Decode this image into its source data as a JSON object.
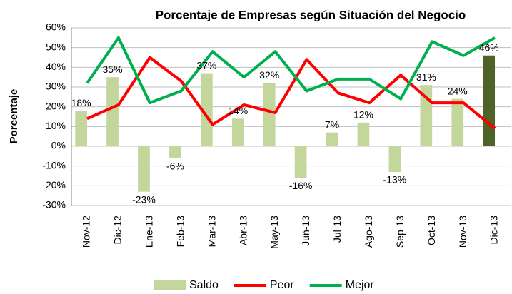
{
  "chart_data": {
    "type": "combo",
    "title": "Porcentaje de Empresas según Situación del Negocio",
    "y_label": "Porcentaje",
    "categories": [
      "Nov-12",
      "Dic-12",
      "Ene-13",
      "Feb-13",
      "Mar-13",
      "Abr-13",
      "May-13",
      "Jun-13",
      "Jul-13",
      "Ago-13",
      "Sep-13",
      "Oct-13",
      "Nov-13",
      "Dic-13"
    ],
    "ylim": [
      -30,
      60
    ],
    "yticks": [
      {
        "value": -30,
        "label": "-30%"
      },
      {
        "value": -20,
        "label": "-20%"
      },
      {
        "value": -10,
        "label": "-10%"
      },
      {
        "value": 0,
        "label": "0%"
      },
      {
        "value": 10,
        "label": "10%"
      },
      {
        "value": 20,
        "label": "20%"
      },
      {
        "value": 30,
        "label": "30%"
      },
      {
        "value": 40,
        "label": "40%"
      },
      {
        "value": 50,
        "label": "50%"
      },
      {
        "value": 60,
        "label": "60%"
      }
    ],
    "grid": true,
    "legend": "bottom",
    "series": [
      {
        "name": "Saldo",
        "type": "bar",
        "color": "#c3d69b",
        "colors": [
          "#c3d69b",
          "#c3d69b",
          "#c3d69b",
          "#c3d69b",
          "#c3d69b",
          "#c3d69b",
          "#c3d69b",
          "#c3d69b",
          "#c3d69b",
          "#c3d69b",
          "#c3d69b",
          "#c3d69b",
          "#c3d69b",
          "#4f6228"
        ],
        "values": [
          18,
          35,
          -23,
          -6,
          37,
          14,
          32,
          -16,
          7,
          12,
          -13,
          31,
          24,
          46
        ],
        "value_labels": [
          "18%",
          "35%",
          "-23%",
          "-6%",
          "37%",
          "14%",
          "32%",
          "-16%",
          "7%",
          "12%",
          "-13%",
          "31%",
          "24%",
          "46%"
        ]
      },
      {
        "name": "Peor",
        "type": "line",
        "color": "#ff0000",
        "values": [
          14,
          21,
          45,
          33,
          11,
          21,
          17,
          44,
          27,
          22,
          36,
          22,
          22,
          9
        ]
      },
      {
        "name": "Mejor",
        "type": "line",
        "color": "#00b050",
        "values": [
          32,
          55,
          22,
          28,
          48,
          35,
          48,
          28,
          34,
          34,
          24,
          53,
          46,
          55
        ]
      }
    ]
  }
}
